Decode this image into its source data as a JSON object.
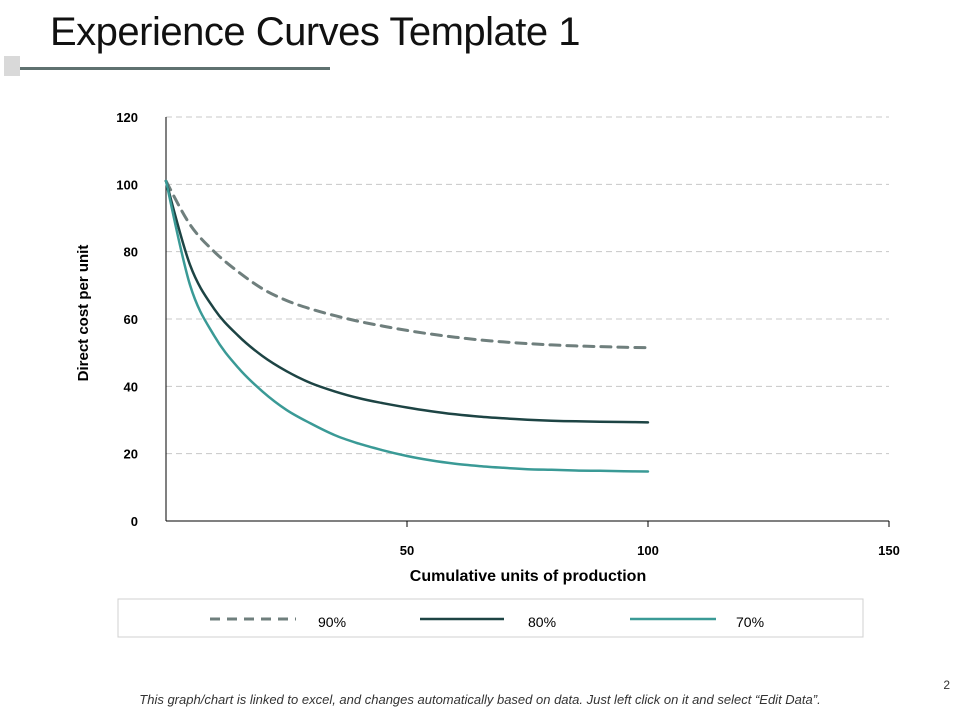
{
  "slide": {
    "title": "Experience Curves Template 1",
    "footnote": "This graph/chart is linked to excel, and changes automatically based on data.  Just left click on it and select “Edit Data”.",
    "page_number": "2"
  },
  "colors": {
    "series_90": "#6f7f7d",
    "series_80": "#1d4444",
    "series_70": "#3a9a96",
    "grid": "#c8c8c8",
    "axis": "#000000",
    "accent": "#5f7170"
  },
  "chart_data": {
    "type": "line",
    "xlabel": "Cumulative units of production",
    "ylabel": "Direct cost per unit",
    "xlim": [
      0,
      150
    ],
    "ylim": [
      0,
      120
    ],
    "xticks": [
      50,
      100,
      150
    ],
    "yticks": [
      0,
      20,
      40,
      60,
      80,
      100,
      120
    ],
    "grid": "horizontal dashed",
    "legend_position": "bottom",
    "x": [
      0,
      5,
      10,
      15,
      20,
      25,
      30,
      35,
      40,
      45,
      50,
      55,
      60,
      65,
      70,
      75,
      80,
      85,
      90,
      95,
      100
    ],
    "series": [
      {
        "name": "90%",
        "style": "dashed",
        "values": [
          101,
          88,
          80,
          74,
          69,
          65.5,
          63,
          61,
          59.3,
          57.9,
          56.6,
          55.5,
          54.6,
          53.8,
          53.2,
          52.7,
          52.3,
          52,
          51.8,
          51.6,
          51.5
        ]
      },
      {
        "name": "80%",
        "style": "solid",
        "values": [
          101,
          76,
          63,
          55,
          49,
          44.5,
          41,
          38.5,
          36.5,
          35,
          33.7,
          32.6,
          31.7,
          31,
          30.5,
          30.1,
          29.8,
          29.6,
          29.5,
          29.4,
          29.3
        ]
      },
      {
        "name": "70%",
        "style": "solid",
        "values": [
          101,
          70,
          55,
          45.5,
          38.5,
          33,
          29,
          25.5,
          23,
          21,
          19.3,
          18,
          17,
          16.3,
          15.8,
          15.4,
          15.2,
          15,
          14.9,
          14.8,
          14.7
        ]
      }
    ]
  }
}
